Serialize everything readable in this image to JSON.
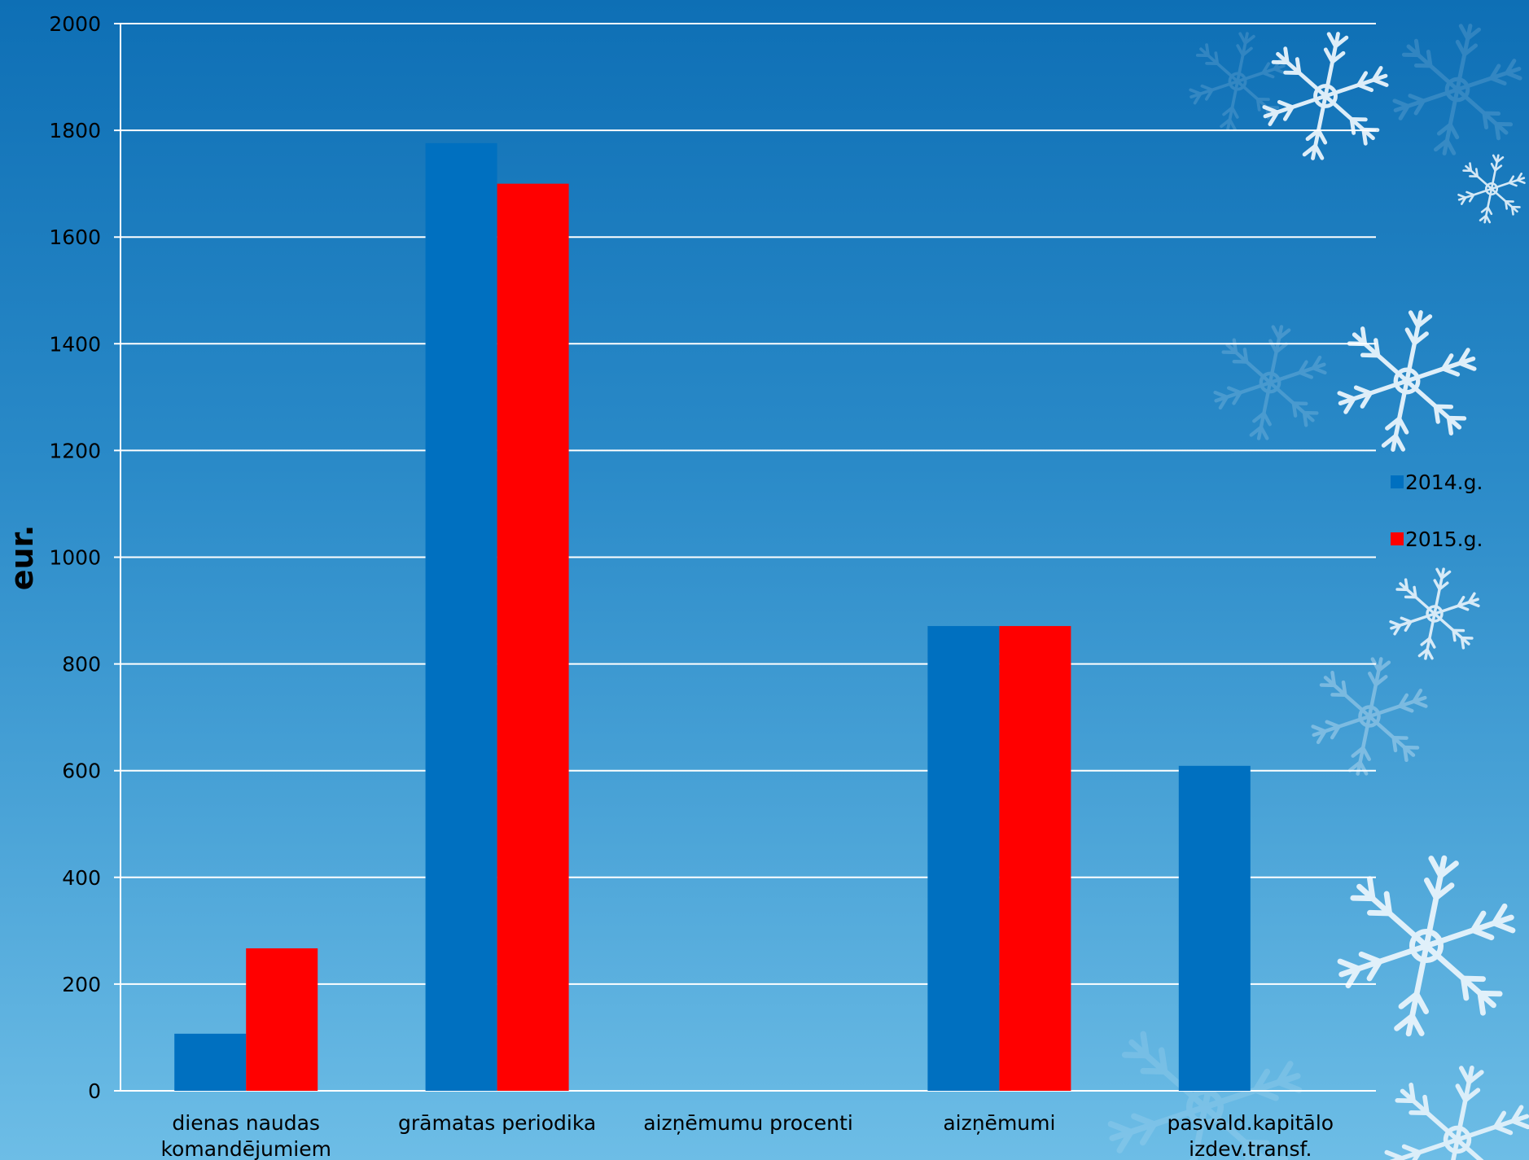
{
  "chart_data": {
    "type": "bar",
    "title": "",
    "xlabel": "",
    "ylabel": "eur.",
    "ylim": [
      0,
      2000
    ],
    "yticks": [
      0,
      200,
      400,
      600,
      800,
      1000,
      1200,
      1400,
      1600,
      1800,
      2000
    ],
    "grid": true,
    "legend_position": "right",
    "categories": [
      [
        "dienas naudas",
        "komandējumiem"
      ],
      [
        "grāmatas periodika"
      ],
      [
        "aizņēmumu procenti"
      ],
      [
        "aizņēmumi"
      ],
      [
        "pasvald.kapitālo",
        "izdev.transf."
      ]
    ],
    "series": [
      {
        "name": "2014.g.",
        "color": "#0070c0",
        "values": [
          107,
          1776,
          0,
          871,
          609
        ]
      },
      {
        "name": "2015.g.",
        "color": "#ff0000",
        "values": [
          267,
          1700,
          0,
          871,
          0
        ]
      }
    ]
  },
  "colors": {
    "grid": "#ffffff",
    "axis": "#ffffff",
    "snowflake": "#e8f4fc"
  }
}
